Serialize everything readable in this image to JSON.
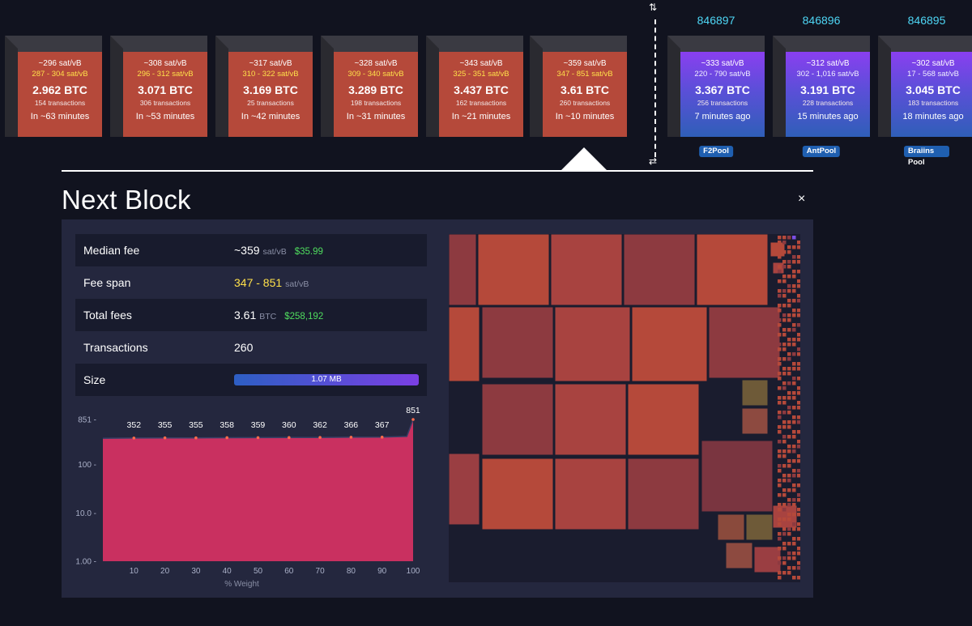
{
  "pending_blocks": [
    {
      "median": "~296 sat/vB",
      "span": "287 - 304 sat/vB",
      "btc": "2.962 BTC",
      "tx": "154 transactions",
      "eta": "In ~63 minutes"
    },
    {
      "median": "~308 sat/vB",
      "span": "296 - 312 sat/vB",
      "btc": "3.071 BTC",
      "tx": "306 transactions",
      "eta": "In ~53 minutes"
    },
    {
      "median": "~317 sat/vB",
      "span": "310 - 322 sat/vB",
      "btc": "3.169 BTC",
      "tx": "25 transactions",
      "eta": "In ~42 minutes"
    },
    {
      "median": "~328 sat/vB",
      "span": "309 - 340 sat/vB",
      "btc": "3.289 BTC",
      "tx": "198 transactions",
      "eta": "In ~31 minutes"
    },
    {
      "median": "~343 sat/vB",
      "span": "325 - 351 sat/vB",
      "btc": "3.437 BTC",
      "tx": "162 transactions",
      "eta": "In ~21 minutes"
    },
    {
      "median": "~359 sat/vB",
      "span": "347 - 851 sat/vB",
      "btc": "3.61 BTC",
      "tx": "260 transactions",
      "eta": "In ~10 minutes"
    }
  ],
  "mined_blocks": [
    {
      "height": "846897",
      "median": "~333 sat/vB",
      "span": "220 - 790 sat/vB",
      "btc": "3.367 BTC",
      "tx": "256 transactions",
      "eta": "7 minutes ago",
      "pool": "F2Pool"
    },
    {
      "height": "846896",
      "median": "~312 sat/vB",
      "span": "302 - 1,016 sat/vB",
      "btc": "3.191 BTC",
      "tx": "228 transactions",
      "eta": "15 minutes ago",
      "pool": "AntPool"
    },
    {
      "height": "846895",
      "median": "~302 sat/vB",
      "span": "17 - 568 sat/vB",
      "btc": "3.045 BTC",
      "tx": "183 transactions",
      "eta": "18 minutes ago",
      "pool": "Braiins Pool"
    }
  ],
  "icons": {
    "swap_top": "⇅",
    "swap_bottom": "⇄",
    "close": "×"
  },
  "detail": {
    "title": "Next Block",
    "median_fee": {
      "label": "Median fee",
      "value": "~359",
      "unit": "sat/vB",
      "usd": "$35.99"
    },
    "fee_span": {
      "label": "Fee span",
      "value": "347 - 851",
      "unit": "sat/vB"
    },
    "total_fees": {
      "label": "Total fees",
      "value": "3.61",
      "unit": "BTC",
      "usd": "$258,192"
    },
    "transactions": {
      "label": "Transactions",
      "value": "260"
    },
    "size": {
      "label": "Size",
      "value": "1.07 MB"
    }
  },
  "colors": {
    "pending": "#b5493a",
    "mined_top": "#8a3ff0",
    "mined_bottom": "#2f5fb8",
    "fee_area": "#c93060",
    "accent_height": "#4ed6f5",
    "usd": "#4fdc5e",
    "span": "#ffe04a"
  },
  "chart_data": {
    "type": "area",
    "xlabel": "% Weight",
    "ylabel": "",
    "x_ticks": [
      10,
      20,
      30,
      40,
      50,
      60,
      70,
      80,
      90,
      100
    ],
    "y_ticks": [
      "1.00",
      "10.0",
      "100",
      "851"
    ],
    "y_scale": "log",
    "ylim": [
      1,
      851
    ],
    "xlim": [
      0,
      100
    ],
    "x": [
      0,
      10,
      20,
      30,
      40,
      50,
      60,
      70,
      80,
      90,
      98,
      100
    ],
    "values": [
      347,
      352,
      355,
      355,
      358,
      359,
      360,
      362,
      366,
      367,
      380,
      851
    ],
    "point_labels": [
      {
        "x": 10,
        "label": "352"
      },
      {
        "x": 20,
        "label": "355"
      },
      {
        "x": 30,
        "label": "355"
      },
      {
        "x": 40,
        "label": "358"
      },
      {
        "x": 50,
        "label": "359"
      },
      {
        "x": 60,
        "label": "360"
      },
      {
        "x": 70,
        "label": "362"
      },
      {
        "x": 80,
        "label": "366"
      },
      {
        "x": 90,
        "label": "367"
      },
      {
        "x": 100,
        "label": "851"
      }
    ]
  }
}
